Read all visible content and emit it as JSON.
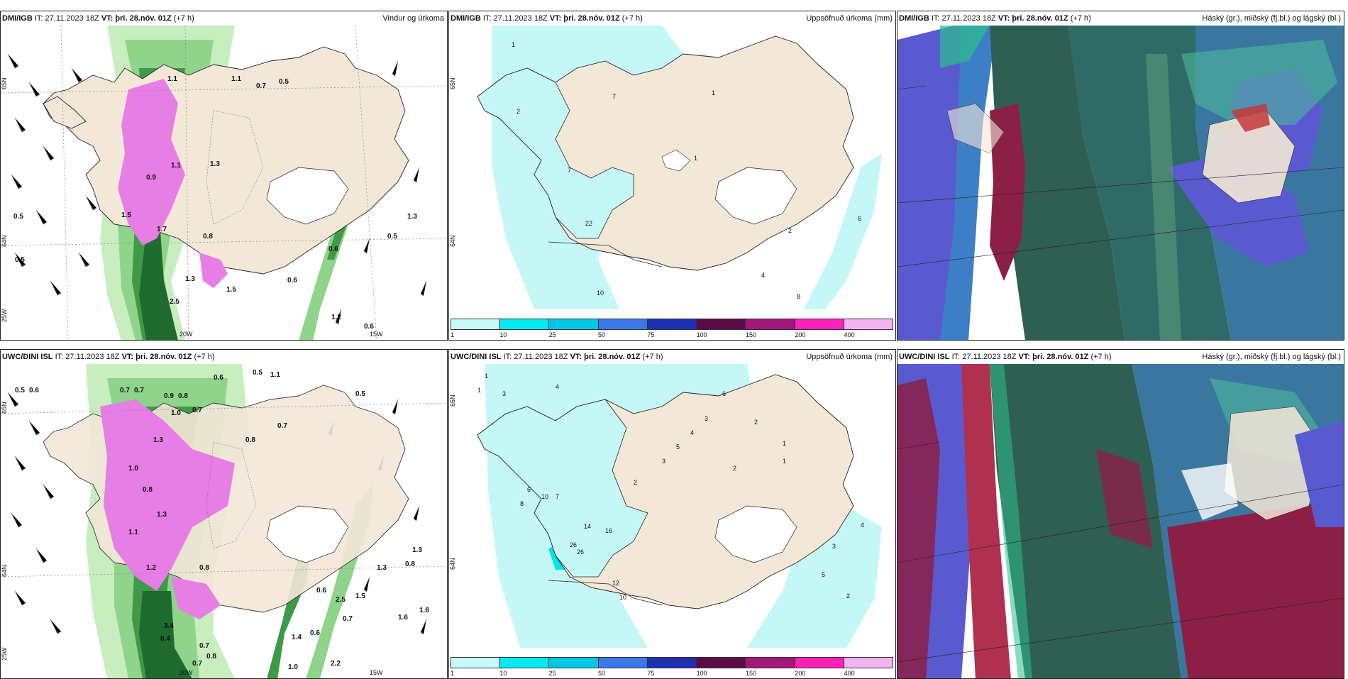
{
  "colors": {
    "land": "#f3e7d8",
    "sea": "#ffffff",
    "precip_light": "#c6f7f7",
    "precip_mid": "#00e5e8",
    "green1": "#c8eec0",
    "green2": "#8fd48a",
    "green3": "#3f9a48",
    "green4": "#1f6a2e",
    "magenta": "#e77ee6",
    "darkteal": "#2f5e52",
    "blue": "#5a5ad0",
    "maroon": "#8c1f45"
  },
  "colorbar": {
    "colors": [
      "#c8f8f8",
      "#00eaf0",
      "#00c7e6",
      "#3a78e8",
      "#1d2fb0",
      "#5b0a46",
      "#a3167a",
      "#ff1fb9",
      "#f3b3f0"
    ],
    "ticks": [
      "1",
      "10",
      "25",
      "50",
      "75",
      "100",
      "150",
      "200",
      "400"
    ]
  },
  "panels": [
    {
      "model": "DMI/IGB",
      "it_label": "IT:",
      "it_value": "27.11.2023 18Z",
      "vt_label": "VT:",
      "vt_value": "þri. 28.nóv. 01Z",
      "lead": "(+7 h)",
      "title": "Vindur og úrkoma",
      "labels": [
        "0.5",
        "0.5",
        "1.1",
        "1.1",
        "0.7",
        "0.5",
        "0.9",
        "1.1",
        "1.3",
        "1.5",
        "1.7",
        "0.8",
        "1.3",
        "2.5",
        "1.5",
        "0.6",
        "0.6",
        "1.2",
        "0.6",
        "1.3",
        "0.5"
      ],
      "axis": [
        "65N",
        "64N",
        "25W",
        "20W",
        "15W"
      ]
    },
    {
      "model": "DMI/IGB",
      "it_label": "IT:",
      "it_value": "27.11.2023 18Z",
      "vt_label": "VT:",
      "vt_value": "þri. 28.nóv. 01Z",
      "lead": "(+7 h)",
      "title": "Uppsöfnuð úrkoma (mm)",
      "labels": [
        "1",
        "7",
        "2",
        "1",
        "7",
        "22",
        "10",
        "2",
        "6",
        "4",
        "8",
        "1"
      ],
      "axis": [
        "65N",
        "64N"
      ]
    },
    {
      "model": "DMI/IGB",
      "it_label": "IT:",
      "it_value": "27.11.2023 18Z",
      "vt_label": "VT:",
      "vt_value": "þri. 28.nóv. 01Z",
      "lead": "(+7 h)",
      "title": "Háský (gr.), miðský (fj.bl.) og lágský (bl.)",
      "labels": [],
      "axis": []
    },
    {
      "model": "UWC/DINI ISL",
      "it_label": "IT:",
      "it_value": "27.11.2023 18Z",
      "vt_label": "VT:",
      "vt_value": "þri. 28.nóv. 01Z",
      "lead": "(+7 h)",
      "title": "",
      "labels": [
        "0.5",
        "0.6",
        "0.7",
        "0.7",
        "0.6",
        "0.5",
        "1.1",
        "0.5",
        "0.9",
        "0.8",
        "0.7",
        "1.0",
        "0.7",
        "0.8",
        "1.3",
        "1.0",
        "0.8",
        "1.3",
        "1.1",
        "0.8",
        "1.2",
        "0.6",
        "1.3",
        "0.8",
        "1.6",
        "3.4",
        "0.4",
        "0.7",
        "0.8",
        "0.7",
        "2.2",
        "1.0",
        "1.4",
        "0.6",
        "0.7",
        "2.5",
        "1.3",
        "1.5",
        "1.6"
      ],
      "axis": [
        "65N",
        "64N",
        "25W",
        "20W",
        "15W"
      ]
    },
    {
      "model": "UWC/DINI ISL",
      "it_label": "IT:",
      "it_value": "27.11.2023 18Z",
      "vt_label": "VT:",
      "vt_value": "þri. 28.nóv. 01Z",
      "lead": "(+7 h)",
      "title": "Uppsöfnuð úrkoma (mm)",
      "labels": [
        "1",
        "1",
        "3",
        "4",
        "6",
        "2",
        "1",
        "26",
        "26",
        "14",
        "16",
        "12",
        "10",
        "3",
        "2",
        "5",
        "4",
        "3",
        "2",
        "1",
        "8",
        "6",
        "10",
        "7",
        "3",
        "4",
        "5",
        "2"
      ],
      "axis": [
        "65N",
        "64N"
      ]
    },
    {
      "model": "UWC/DINI ISL",
      "it_label": "IT:",
      "it_value": "27.11.2023 18Z",
      "vt_label": "VT:",
      "vt_value": "þri. 28.nóv. 01Z",
      "lead": "(+7 h)",
      "title": "Háský (gr.), miðský (fj.bl.) og lágský (bl.)",
      "labels": [],
      "axis": []
    }
  ]
}
